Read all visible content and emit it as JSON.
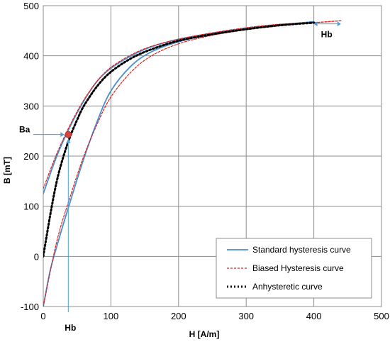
{
  "chart_data": {
    "type": "line",
    "xlabel": "H [A/m]",
    "ylabel": "B [mT]",
    "xlim": [
      0,
      500
    ],
    "ylim": [
      -100,
      500
    ],
    "xticks": [
      0,
      100,
      200,
      300,
      400,
      500
    ],
    "yticks": [
      -100,
      0,
      100,
      200,
      300,
      400,
      500
    ],
    "grid": true,
    "legend_position": "bottom-right",
    "colors": {
      "standard": "#4a8fd0",
      "biased": "#e02020",
      "anhysteretic": "#000000",
      "marker": "#d94040",
      "annotation": "#4a9fd8"
    },
    "series": [
      {
        "name": "Standard hysteresis curve",
        "style": "solid",
        "branches": [
          {
            "x": [
              0,
              20,
              40,
              60,
              80,
              100,
              130,
              160,
              200,
              250,
              300,
              350,
              400
            ],
            "y": [
              125,
              200,
              260,
              310,
              350,
              375,
              400,
              418,
              433,
              445,
              455,
              462,
              468
            ]
          },
          {
            "x": [
              400,
              350,
              300,
              250,
              200,
              160,
              130,
              100,
              80,
              60,
              40,
              20,
              10,
              0
            ],
            "y": [
              468,
              461,
              453,
              443,
              428,
              408,
              380,
              330,
              270,
              195,
              110,
              20,
              -30,
              -100
            ]
          }
        ]
      },
      {
        "name": "Biased Hysteresis curve",
        "style": "dashed",
        "branches": [
          {
            "x": [
              0,
              20,
              40,
              60,
              80,
              100,
              130,
              160,
              200,
              250,
              300,
              350,
              400,
              440
            ],
            "y": [
              135,
              205,
              263,
              312,
              350,
              377,
              402,
              419,
              433,
              446,
              456,
              463,
              466,
              470
            ]
          },
          {
            "x": [
              440,
              400,
              350,
              300,
              250,
              200,
              160,
              130,
              100,
              80,
              60,
              40,
              20,
              0
            ],
            "y": [
              470,
              466,
              460,
              452,
              441,
              424,
              400,
              368,
              318,
              265,
              200,
              120,
              30,
              -100
            ]
          }
        ]
      },
      {
        "name": "Anhysteretic curve",
        "style": "dotted",
        "branches": [
          {
            "x": [
              0,
              10,
              20,
              30,
              40,
              50,
              60,
              80,
              100,
              130,
              160,
              200,
              250,
              300,
              350,
              400
            ],
            "y": [
              0,
              80,
              150,
              200,
              240,
              272,
              300,
              340,
              368,
              395,
              413,
              430,
              443,
              453,
              461,
              466
            ]
          }
        ]
      }
    ],
    "point": {
      "label": "Ba",
      "x": 37,
      "y": 243
    },
    "annotations": [
      {
        "label": "Hb",
        "x": 37,
        "y": -100,
        "place": "below-axis"
      },
      {
        "label": "Hb",
        "from_x": 400,
        "to_x": 440,
        "y": 468
      }
    ]
  }
}
